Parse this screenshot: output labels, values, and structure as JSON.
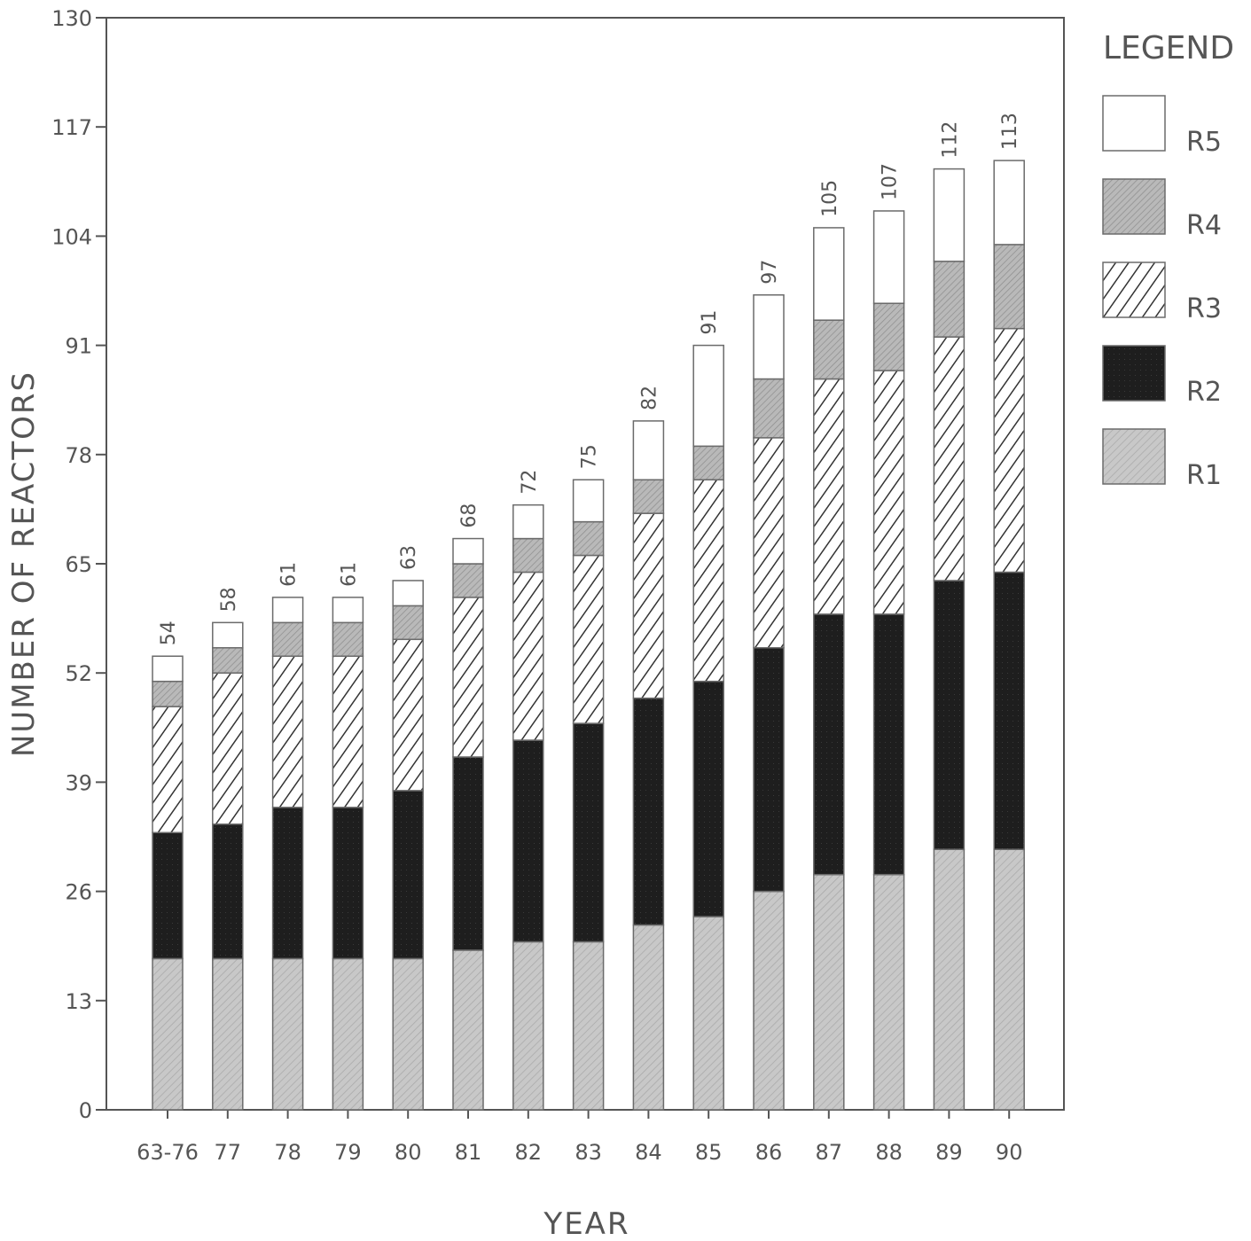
{
  "chart_data": {
    "type": "bar",
    "stacked": true,
    "title": "",
    "xlabel": "YEAR",
    "ylabel": "NUMBER OF REACTORS",
    "ylim": [
      0,
      130
    ],
    "yticks": [
      0,
      13,
      26,
      39,
      52,
      65,
      78,
      91,
      104,
      117,
      130
    ],
    "categories": [
      "63-76",
      "77",
      "78",
      "79",
      "80",
      "81",
      "82",
      "83",
      "84",
      "85",
      "86",
      "87",
      "88",
      "89",
      "90"
    ],
    "series": [
      {
        "name": "R1",
        "values": [
          18,
          18,
          18,
          18,
          18,
          19,
          20,
          20,
          22,
          23,
          26,
          28,
          28,
          31,
          31
        ]
      },
      {
        "name": "R2",
        "values": [
          15,
          16,
          18,
          18,
          20,
          23,
          24,
          26,
          27,
          28,
          29,
          31,
          31,
          32,
          33
        ]
      },
      {
        "name": "R3",
        "values": [
          15,
          18,
          18,
          18,
          18,
          19,
          20,
          20,
          22,
          24,
          25,
          28,
          29,
          29,
          29
        ]
      },
      {
        "name": "R4",
        "values": [
          3,
          3,
          4,
          4,
          4,
          4,
          4,
          4,
          4,
          4,
          7,
          7,
          8,
          9,
          10
        ]
      },
      {
        "name": "R5",
        "values": [
          3,
          3,
          3,
          3,
          3,
          3,
          4,
          5,
          7,
          12,
          10,
          11,
          11,
          11,
          10
        ]
      }
    ],
    "totals": [
      "54",
      "58",
      "61",
      "61",
      "63",
      "68",
      "72",
      "75",
      "82",
      "91",
      "97",
      "105",
      "107",
      "112",
      "113"
    ],
    "legend": {
      "title": "LEGEND",
      "placement": "right",
      "order": [
        "R5",
        "R4",
        "R3",
        "R2",
        "R1"
      ]
    },
    "grid": false,
    "colors": {
      "R1": "#c8c8c8",
      "R2": "#1e1e1e",
      "R3": "#ffffff",
      "R4": "#b9b9b9",
      "R5": "#ffffff",
      "axis": "#555555"
    }
  }
}
